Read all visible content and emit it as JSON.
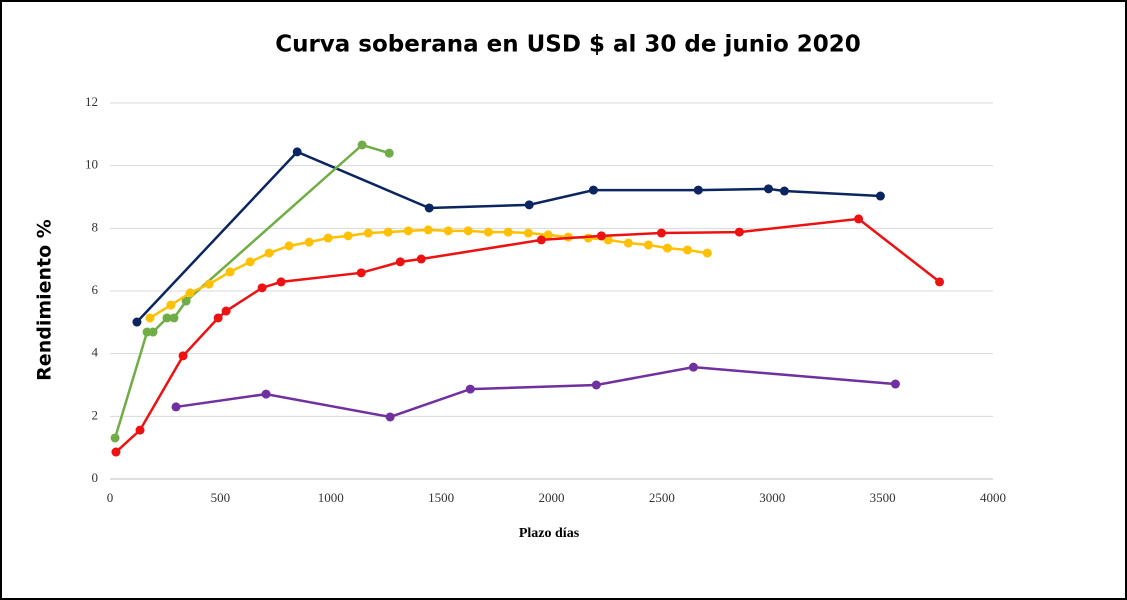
{
  "chart_data": {
    "type": "line",
    "title": "Curva soberana en USD $ al 30 de junio 2020",
    "x_label": "Plazo días",
    "y_label": "Rendimiento %",
    "xlim": [
      0,
      4000
    ],
    "xticks": [
      0,
      500,
      1000,
      1500,
      2000,
      2500,
      3000,
      3500,
      4000
    ],
    "ylim": [
      0,
      12
    ],
    "yticks": [
      0,
      2,
      4,
      6,
      8,
      10,
      12
    ],
    "grid": true,
    "series": [
      {
        "color": "#0b2560",
        "x": [
          122,
          848,
          1446,
          1899,
          2190,
          2665,
          2983,
          3055,
          3490
        ],
        "values": [
          5.01,
          10.44,
          8.65,
          8.75,
          9.22,
          9.22,
          9.26,
          9.19,
          9.03
        ]
      },
      {
        "color": "#70ad47",
        "x": [
          23,
          168,
          195,
          258,
          290,
          345,
          1142,
          1265
        ],
        "values": [
          1.31,
          4.69,
          4.69,
          5.14,
          5.14,
          5.68,
          10.66,
          10.4
        ]
      },
      {
        "color": "#ffc000",
        "x": [
          181,
          276,
          363,
          449,
          544,
          635,
          721,
          811,
          902,
          988,
          1079,
          1170,
          1260,
          1351,
          1442,
          1532,
          1623,
          1714,
          1804,
          1895,
          1985,
          2076,
          2167,
          2257,
          2348,
          2439,
          2525,
          2616,
          2706
        ],
        "values": [
          5.14,
          5.55,
          5.94,
          6.22,
          6.61,
          6.93,
          7.21,
          7.44,
          7.56,
          7.69,
          7.76,
          7.85,
          7.88,
          7.92,
          7.95,
          7.92,
          7.92,
          7.88,
          7.88,
          7.85,
          7.79,
          7.72,
          7.69,
          7.63,
          7.53,
          7.47,
          7.37,
          7.31,
          7.21
        ]
      },
      {
        "color": "#ee1111",
        "x": [
          27,
          136,
          331,
          490,
          526,
          689,
          775,
          1138,
          1315,
          1410,
          1954,
          2226,
          2498,
          2851,
          3391,
          3758
        ],
        "values": [
          0.86,
          1.56,
          3.93,
          5.14,
          5.36,
          6.1,
          6.29,
          6.58,
          6.93,
          7.02,
          7.63,
          7.76,
          7.85,
          7.88,
          8.3,
          6.29
        ]
      },
      {
        "color": "#7030a0",
        "x": [
          299,
          707,
          1269,
          1632,
          2203,
          2643,
          3558
        ],
        "values": [
          2.3,
          2.71,
          1.98,
          2.87,
          3.0,
          3.57,
          3.03
        ]
      }
    ]
  }
}
